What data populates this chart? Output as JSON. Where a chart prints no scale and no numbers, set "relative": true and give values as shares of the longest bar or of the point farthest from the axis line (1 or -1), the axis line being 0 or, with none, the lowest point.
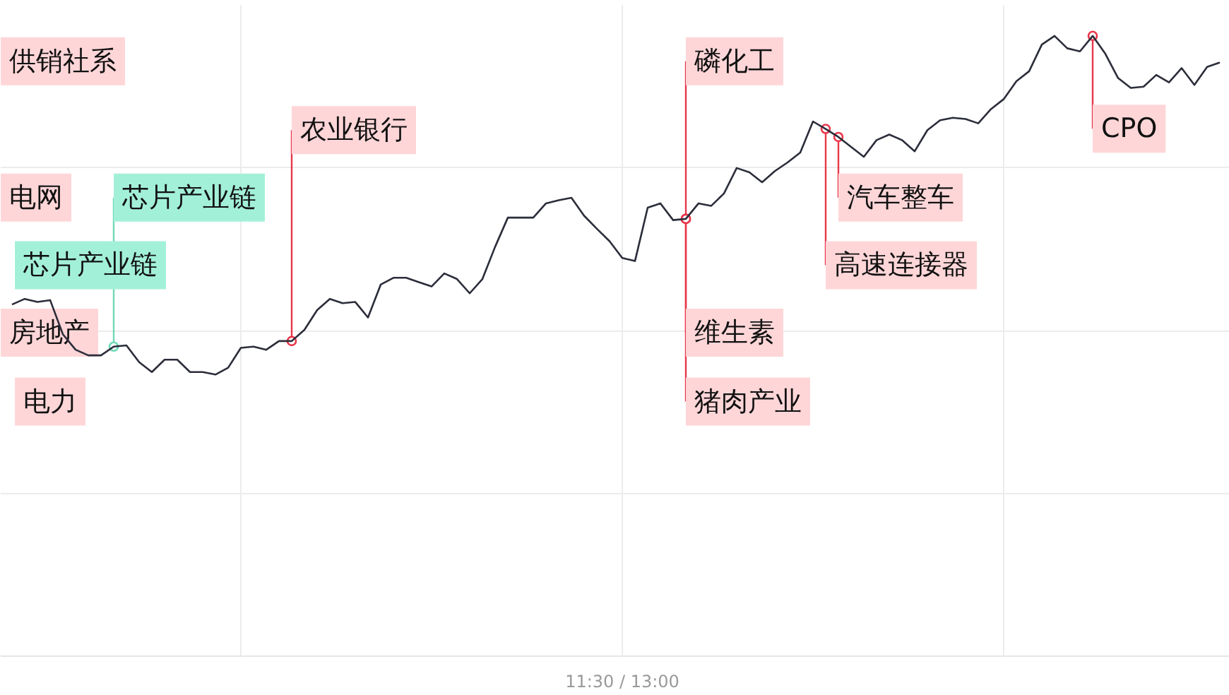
{
  "chart_data": {
    "type": "line",
    "relative": true,
    "grid": true,
    "marker": "none",
    "line_style": "solid",
    "categories": [
      null,
      null,
      null,
      null,
      null,
      null,
      null,
      null,
      null,
      null,
      null,
      null,
      null,
      null,
      null,
      null,
      null,
      null,
      null,
      null,
      null,
      null,
      null,
      null,
      null,
      null,
      null,
      null,
      null,
      null,
      null,
      null,
      null,
      null,
      null,
      null,
      null,
      null,
      null,
      null,
      null,
      null,
      null,
      null,
      null,
      null,
      null,
      null,
      null,
      null,
      null,
      null,
      null,
      null,
      null,
      null,
      null,
      null,
      null,
      null,
      null,
      null,
      null,
      null,
      null,
      null,
      null,
      null,
      null,
      null,
      null,
      null,
      null,
      null,
      null,
      null,
      null,
      null,
      null,
      null,
      null,
      null,
      null,
      null,
      null,
      null,
      null,
      null,
      null,
      null,
      null,
      null,
      null,
      null,
      null,
      null
    ],
    "series": [
      {
        "color": "#2b2d3a",
        "values": [
          0.567,
          0.576,
          0.571,
          0.574,
          0.519,
          0.494,
          0.485,
          0.485,
          0.499,
          0.501,
          0.474,
          0.458,
          0.478,
          0.478,
          0.458,
          0.458,
          0.454,
          0.465,
          0.497,
          0.499,
          0.494,
          0.508,
          0.508,
          0.526,
          0.558,
          0.576,
          0.569,
          0.571,
          0.546,
          0.599,
          0.61,
          0.61,
          0.603,
          0.596,
          0.617,
          0.608,
          0.585,
          0.608,
          0.66,
          0.707,
          0.707,
          0.707,
          0.73,
          0.735,
          0.739,
          0.71,
          0.689,
          0.669,
          0.642,
          0.637,
          0.723,
          0.73,
          0.703,
          0.705,
          0.73,
          0.726,
          0.746,
          0.787,
          0.78,
          0.764,
          0.782,
          0.796,
          0.812,
          0.862,
          0.85,
          0.837,
          0.821,
          0.805,
          0.832,
          0.841,
          0.832,
          0.814,
          0.848,
          0.864,
          0.868,
          0.866,
          0.859,
          0.882,
          0.898,
          0.927,
          0.943,
          0.986,
          1.0,
          0.98,
          0.975,
          1.0,
          0.971,
          0.932,
          0.916,
          0.918,
          0.937,
          0.925,
          0.948,
          0.921,
          0.95,
          0.957
        ]
      }
    ],
    "annotations": [
      "供销社系",
      "电网",
      "芯片产业链",
      "房地产",
      "电力",
      "芯片产业链",
      "农业银行",
      "磷化工",
      "维生素",
      "猪肉产业",
      "汽车整车",
      "高速连接器",
      "CPO",
      "11:30 / 13:00"
    ]
  }
}
